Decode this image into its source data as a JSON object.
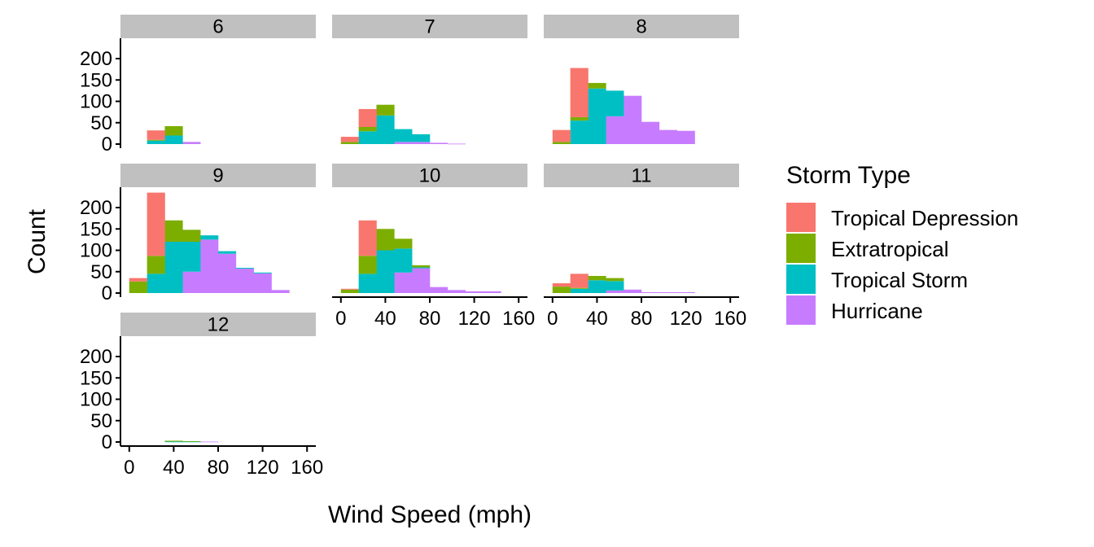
{
  "chart_data": {
    "type": "bar",
    "subtype": "faceted-stacked-histogram",
    "xlabel": "Wind Speed (mph)",
    "ylabel": "Count",
    "xlim": [
      0,
      160
    ],
    "ylim": [
      0,
      240
    ],
    "x_ticks": [
      "0",
      "40",
      "80",
      "120",
      "160"
    ],
    "y_ticks": [
      "0",
      "50",
      "100",
      "150",
      "200"
    ],
    "bin_edges": [
      0,
      16,
      32,
      48,
      64,
      80,
      96,
      112,
      128,
      144,
      160
    ],
    "stack_order_bottom_to_top": [
      "Hurricane",
      "Tropical Storm",
      "Extratropical",
      "Tropical Depression"
    ],
    "legend": {
      "title": "Storm Type",
      "position": "right",
      "entries": [
        {
          "name": "Tropical Depression",
          "color": "#F8766D"
        },
        {
          "name": "Extratropical",
          "color": "#7CAE00"
        },
        {
          "name": "Tropical Storm",
          "color": "#00BFC4"
        },
        {
          "name": "Hurricane",
          "color": "#C77CFF"
        }
      ]
    },
    "facets": [
      {
        "label": "6",
        "series": {
          "Tropical Depression": [
            0,
            22,
            0,
            0,
            0,
            0,
            0,
            0,
            0,
            0
          ],
          "Extratropical": [
            0,
            2,
            22,
            0,
            0,
            0,
            0,
            0,
            0,
            0
          ],
          "Tropical Storm": [
            0,
            8,
            20,
            0,
            0,
            0,
            0,
            0,
            0,
            0
          ],
          "Hurricane": [
            0,
            0,
            0,
            5,
            0,
            0,
            0,
            0,
            0,
            0
          ]
        }
      },
      {
        "label": "7",
        "series": {
          "Tropical Depression": [
            12,
            42,
            0,
            0,
            0,
            0,
            0,
            0,
            0,
            0
          ],
          "Extratropical": [
            5,
            10,
            25,
            0,
            0,
            0,
            0,
            0,
            0,
            0
          ],
          "Tropical Storm": [
            0,
            30,
            67,
            30,
            18,
            0,
            0,
            0,
            0,
            0
          ],
          "Hurricane": [
            0,
            0,
            0,
            5,
            5,
            3,
            1,
            0,
            0,
            0
          ]
        }
      },
      {
        "label": "8",
        "series": {
          "Tropical Depression": [
            28,
            115,
            0,
            0,
            0,
            0,
            0,
            0,
            0,
            0
          ],
          "Extratropical": [
            5,
            8,
            13,
            0,
            0,
            0,
            0,
            0,
            0,
            0
          ],
          "Tropical Storm": [
            0,
            55,
            130,
            60,
            0,
            0,
            0,
            0,
            0,
            0
          ],
          "Hurricane": [
            0,
            0,
            0,
            65,
            113,
            52,
            33,
            31,
            0,
            0
          ]
        }
      },
      {
        "label": "9",
        "series": {
          "Tropical Depression": [
            8,
            148,
            0,
            0,
            0,
            0,
            0,
            0,
            0,
            0
          ],
          "Extratropical": [
            27,
            42,
            50,
            28,
            0,
            0,
            0,
            0,
            0,
            0
          ],
          "Tropical Storm": [
            0,
            45,
            120,
            70,
            10,
            6,
            2,
            2,
            0,
            0
          ],
          "Hurricane": [
            0,
            0,
            0,
            50,
            125,
            92,
            57,
            46,
            7,
            0
          ]
        }
      },
      {
        "label": "10",
        "series": {
          "Tropical Depression": [
            2,
            83,
            0,
            0,
            0,
            0,
            0,
            0,
            0,
            0
          ],
          "Extratropical": [
            8,
            42,
            50,
            23,
            5,
            0,
            0,
            0,
            0,
            0
          ],
          "Tropical Storm": [
            0,
            45,
            100,
            56,
            2,
            0,
            0,
            0,
            0,
            0
          ],
          "Hurricane": [
            0,
            0,
            0,
            48,
            58,
            14,
            7,
            4,
            4,
            0
          ]
        }
      },
      {
        "label": "11",
        "series": {
          "Tropical Depression": [
            8,
            33,
            0,
            0,
            0,
            0,
            0,
            0,
            0,
            0
          ],
          "Extratropical": [
            15,
            2,
            10,
            7,
            0,
            0,
            0,
            0,
            0,
            0
          ],
          "Tropical Storm": [
            0,
            10,
            30,
            22,
            0,
            0,
            0,
            0,
            0,
            0
          ],
          "Hurricane": [
            0,
            0,
            0,
            6,
            8,
            2,
            2,
            2,
            0,
            0
          ]
        }
      },
      {
        "label": "12",
        "series": {
          "Tropical Depression": [
            0,
            0,
            0,
            0,
            0,
            0,
            0,
            0,
            0,
            0
          ],
          "Extratropical": [
            0,
            0,
            2,
            1,
            0,
            0,
            0,
            0,
            0,
            0
          ],
          "Tropical Storm": [
            0,
            0,
            1,
            1,
            0,
            0,
            0,
            0,
            0,
            0
          ],
          "Hurricane": [
            0,
            0,
            0,
            0,
            1,
            0,
            0,
            0,
            0,
            0
          ]
        }
      }
    ]
  }
}
